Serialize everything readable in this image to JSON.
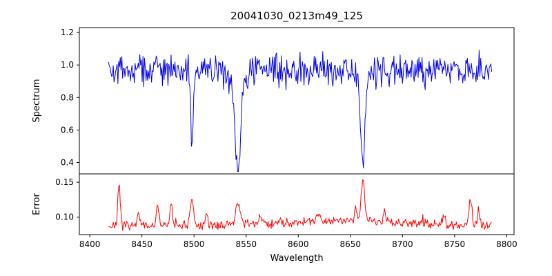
{
  "figure": {
    "title": "20041030_0213m49_125",
    "background": "#ffffff",
    "axes_color": "#000000"
  },
  "chart_data": {
    "type": "line",
    "title": "20041030_0213m49_125",
    "xlabel": "Wavelength",
    "xlim": [
      8390,
      8807
    ],
    "grid": false,
    "legend": "none",
    "x_ticks": [
      {
        "value": 8400,
        "label": "8400"
      },
      {
        "value": 8450,
        "label": "8450"
      },
      {
        "value": 8500,
        "label": "8500"
      },
      {
        "value": 8550,
        "label": "8550"
      },
      {
        "value": 8600,
        "label": "8600"
      },
      {
        "value": 8650,
        "label": "8650"
      },
      {
        "value": 8700,
        "label": "8700"
      },
      {
        "value": 8750,
        "label": "8750"
      },
      {
        "value": 8800,
        "label": "8800"
      }
    ],
    "panels": [
      {
        "name": "spectrum",
        "ylabel": "Spectrum",
        "ylim": [
          0.33,
          1.23
        ],
        "y_ticks": [
          {
            "value": 0.4,
            "label": "0.4"
          },
          {
            "value": 0.6,
            "label": "0.6"
          },
          {
            "value": 0.8,
            "label": "0.8"
          },
          {
            "value": 1.0,
            "label": "1.0"
          },
          {
            "value": 1.2,
            "label": "1.2"
          }
        ],
        "color": "#0000ee",
        "series_spec": {
          "x_start": 8418,
          "x_end": 8786,
          "x_step": 0.75,
          "baseline": 0.97,
          "noise_sigma": 0.048,
          "outlier_prob": 0.02,
          "outlier_depth": 0.09,
          "clamp_min": 0.345,
          "seed": 42,
          "absorption_lines": [
            {
              "center": 8498.0,
              "depth": 0.38,
              "width": 1.3
            },
            {
              "center": 8498.0,
              "depth": 0.06,
              "width": 4.0
            },
            {
              "center": 8542.1,
              "depth": 0.55,
              "width": 2.2
            },
            {
              "center": 8542.1,
              "depth": 0.14,
              "width": 6.0
            },
            {
              "center": 8662.1,
              "depth": 0.48,
              "width": 1.8
            },
            {
              "center": 8662.1,
              "depth": 0.11,
              "width": 5.0
            }
          ]
        }
      },
      {
        "name": "error",
        "ylabel": "Error",
        "ylim": [
          0.075,
          0.162
        ],
        "y_ticks": [
          {
            "value": 0.1,
            "label": "0.10"
          },
          {
            "value": 0.15,
            "label": "0.15"
          }
        ],
        "color": "#ff0000",
        "series_spec": {
          "x_start": 8418,
          "x_end": 8786,
          "x_step": 0.75,
          "baseline": 0.088,
          "noise_sigma": 0.0032,
          "outlier_prob": 0.012,
          "outlier_depth": -0.008,
          "clamp_min": 0.079,
          "seed": 7,
          "broad_bump": {
            "center": 8640,
            "height": 0.007,
            "width": 55
          },
          "spikes": [
            {
              "center": 8428,
              "height": 0.055,
              "width": 1.2
            },
            {
              "center": 8447,
              "height": 0.018,
              "width": 1.0
            },
            {
              "center": 8465,
              "height": 0.03,
              "width": 1.2
            },
            {
              "center": 8478,
              "height": 0.028,
              "width": 1.2
            },
            {
              "center": 8498,
              "height": 0.036,
              "width": 1.5
            },
            {
              "center": 8512,
              "height": 0.016,
              "width": 1.0
            },
            {
              "center": 8542,
              "height": 0.033,
              "width": 2.0
            },
            {
              "center": 8563,
              "height": 0.012,
              "width": 1.0
            },
            {
              "center": 8620,
              "height": 0.01,
              "width": 1.5
            },
            {
              "center": 8655,
              "height": 0.02,
              "width": 1.2
            },
            {
              "center": 8662,
              "height": 0.06,
              "width": 1.8
            },
            {
              "center": 8683,
              "height": 0.018,
              "width": 1.2
            },
            {
              "center": 8740,
              "height": 0.012,
              "width": 1.0
            },
            {
              "center": 8765,
              "height": 0.04,
              "width": 1.3
            },
            {
              "center": 8773,
              "height": 0.022,
              "width": 1.0
            }
          ]
        }
      }
    ]
  }
}
